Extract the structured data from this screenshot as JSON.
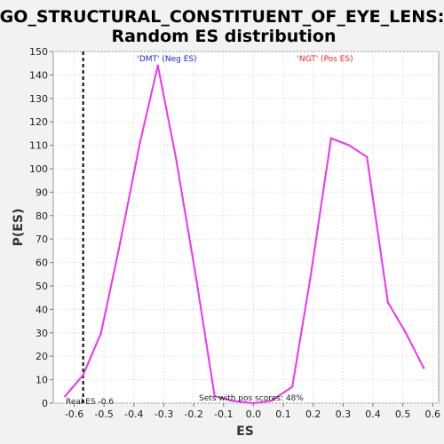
{
  "chart_data": {
    "type": "line",
    "title": "GO_STRUCTURAL_CONSTITUENT_OF_EYE_LENS:",
    "subtitle": "Random ES distribution",
    "xlabel": "ES",
    "ylabel": "P(ES)",
    "xlim": [
      -0.67,
      0.62
    ],
    "ylim": [
      0,
      150
    ],
    "x_ticks": [
      -0.6,
      -0.5,
      -0.4,
      -0.3,
      -0.2,
      -0.1,
      0.0,
      0.1,
      0.2,
      0.3,
      0.4,
      0.5,
      0.6
    ],
    "x_tick_labels": [
      "-0.6",
      "-0.5",
      "-0.4",
      "-0.3",
      "-0.2",
      "-0.1",
      "0.0",
      "0.1",
      "0.2",
      "0.3",
      "0.4",
      "0.5",
      "0.6"
    ],
    "y_ticks": [
      0,
      10,
      20,
      30,
      40,
      50,
      60,
      70,
      80,
      90,
      100,
      110,
      120,
      130,
      140,
      150
    ],
    "y_tick_labels": [
      "0",
      "10",
      "20",
      "30",
      "40",
      "50",
      "60",
      "70",
      "80",
      "90",
      "100",
      "110",
      "120",
      "130",
      "140",
      "150"
    ],
    "grid": true,
    "series": [
      {
        "color": "#ee33ee",
        "x": [
          -0.63,
          -0.57,
          -0.51,
          -0.45,
          -0.38,
          -0.32,
          -0.26,
          -0.19,
          -0.13,
          -0.07,
          0.0,
          0.06,
          0.13,
          0.19,
          0.26,
          0.32,
          0.38,
          0.45,
          0.51,
          0.57
        ],
        "y": [
          3,
          12,
          30,
          66,
          111,
          144,
          105,
          52,
          3,
          1,
          0,
          1,
          7,
          53,
          113,
          110,
          105,
          43,
          30,
          15
        ]
      }
    ],
    "annotations": {
      "neg_label": "'DMT' (Neg ES)",
      "neg_color": "#2222dd",
      "pos_label": "'NGT' (Pos ES)",
      "pos_color": "#ee2222",
      "real_es_label": "Real ES -0.6",
      "real_es_value": -0.57,
      "sets_pos_label": "Sets with pos scores: 48%"
    }
  }
}
